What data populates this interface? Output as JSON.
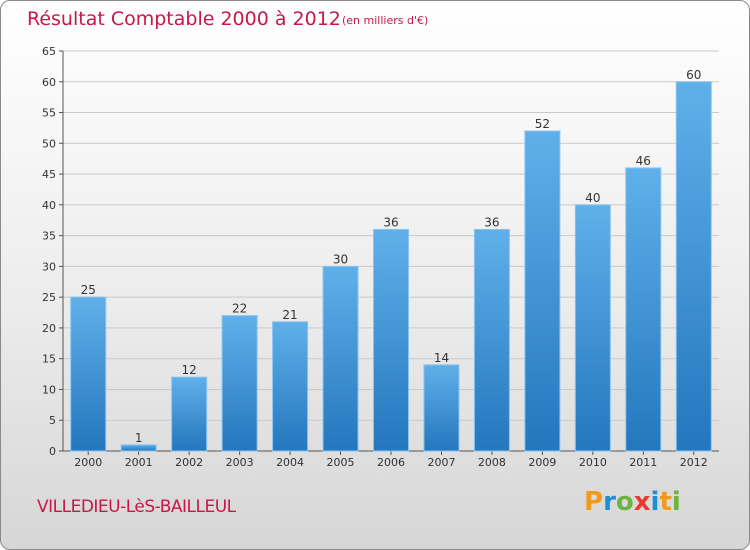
{
  "chart_data": {
    "type": "bar",
    "title": "Résultat Comptable 2000 à 2012",
    "subtitle": "(en milliers d'€)",
    "categories": [
      "2000",
      "2001",
      "2002",
      "2003",
      "2004",
      "2005",
      "2006",
      "2007",
      "2008",
      "2009",
      "2010",
      "2011",
      "2012"
    ],
    "values": [
      25,
      1,
      12,
      22,
      21,
      30,
      36,
      14,
      36,
      52,
      40,
      46,
      60
    ],
    "ylim": [
      0,
      65
    ],
    "yticks": [
      0,
      5,
      10,
      15,
      20,
      25,
      30,
      35,
      40,
      45,
      50,
      55,
      60,
      65
    ],
    "grid": true,
    "bar_color": "#3c8fd8"
  },
  "footer": {
    "commune": "VILLEDIEU-LèS-BAILLEUL",
    "logo": "Proxiti"
  }
}
